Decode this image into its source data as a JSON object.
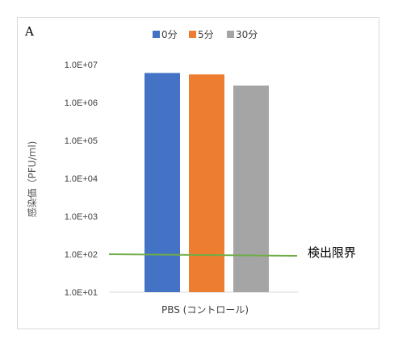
{
  "panel_label": "A",
  "chart_data": {
    "type": "bar",
    "yscale": "log",
    "ylim": [
      10,
      10000000
    ],
    "ylabel": "感染価（PFU/ml)",
    "ytick_labels": [
      "1.0E+01",
      "1.0E+02",
      "1.0E+03",
      "1.0E+04",
      "1.0E+05",
      "1.0E+06",
      "1.0E+07"
    ],
    "categories": [
      "PBS (コントロール)"
    ],
    "series": [
      {
        "name": "0分",
        "color": "#4472c4",
        "values": [
          6000000
        ]
      },
      {
        "name": "5分",
        "color": "#ed7d31",
        "values": [
          5500000
        ]
      },
      {
        "name": "30分",
        "color": "#a5a5a5",
        "values": [
          2800000
        ]
      }
    ],
    "detection_limit": {
      "label": "検出限界",
      "value": 100,
      "color": "#70ad47"
    },
    "legend_position": "top",
    "grid": false
  }
}
